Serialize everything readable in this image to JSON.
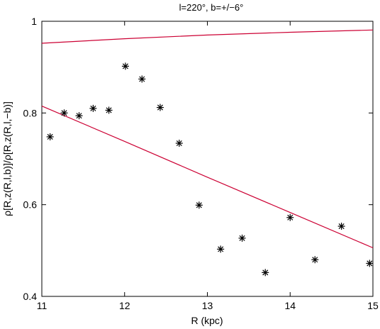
{
  "chart_data": {
    "type": "scatter",
    "title": "l=220°, b=+/−6°",
    "xlabel": "R (kpc)",
    "ylabel": "ρ[R,z(R,l,b)]/ρ[R,z(R,l,−b)]",
    "xlim": [
      11,
      15
    ],
    "ylim": [
      0.4,
      1.0
    ],
    "x_ticks": [
      "11",
      "12",
      "13",
      "14",
      "15"
    ],
    "y_ticks": [
      "0.4",
      "0.6",
      "0.8",
      "1"
    ],
    "x_tick_values": [
      11,
      12,
      13,
      14,
      15
    ],
    "y_tick_values": [
      0.4,
      0.6,
      0.8,
      1.0
    ],
    "grid": false,
    "series": [
      {
        "marker": "asterisk",
        "color": "#000000",
        "points": [
          [
            11.1,
            0.748
          ],
          [
            11.27,
            0.8
          ],
          [
            11.45,
            0.794
          ],
          [
            11.62,
            0.81
          ],
          [
            11.81,
            0.806
          ],
          [
            12.01,
            0.902
          ],
          [
            12.21,
            0.874
          ],
          [
            12.43,
            0.812
          ],
          [
            12.66,
            0.734
          ],
          [
            12.9,
            0.599
          ],
          [
            13.16,
            0.503
          ],
          [
            13.42,
            0.527
          ],
          [
            13.7,
            0.452
          ],
          [
            14.0,
            0.572
          ],
          [
            14.3,
            0.48
          ],
          [
            14.62,
            0.553
          ],
          [
            14.96,
            0.472
          ]
        ]
      },
      {
        "line": true,
        "color": "#cc0033",
        "points": [
          [
            11,
            0.815
          ],
          [
            12,
            0.738
          ],
          [
            13,
            0.66
          ],
          [
            14,
            0.583
          ],
          [
            15,
            0.506
          ]
        ]
      },
      {
        "line": true,
        "color": "#cc0033",
        "points": [
          [
            11,
            0.952
          ],
          [
            12,
            0.962
          ],
          [
            13,
            0.97
          ],
          [
            14,
            0.976
          ],
          [
            15,
            0.981
          ]
        ]
      }
    ]
  }
}
